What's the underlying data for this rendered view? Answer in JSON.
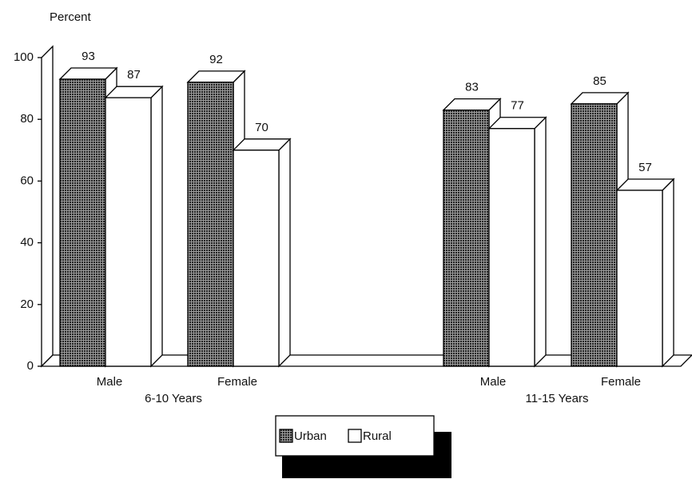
{
  "chart_data": {
    "type": "bar3d",
    "ylabel": "Percent",
    "categories": [
      "Male",
      "Female",
      null,
      "Male",
      "Female"
    ],
    "group_labels": [
      "6-10 Years",
      "11-15 Years"
    ],
    "series": [
      {
        "name": "Urban",
        "color": "#4a4a4a",
        "values": [
          93,
          92,
          null,
          83,
          85
        ]
      },
      {
        "name": "Rural",
        "color": "#ffffff",
        "values": [
          87,
          70,
          null,
          77,
          57
        ]
      }
    ],
    "ylim": [
      0,
      100
    ],
    "yticks": [
      0,
      20,
      40,
      60,
      80,
      100
    ]
  }
}
